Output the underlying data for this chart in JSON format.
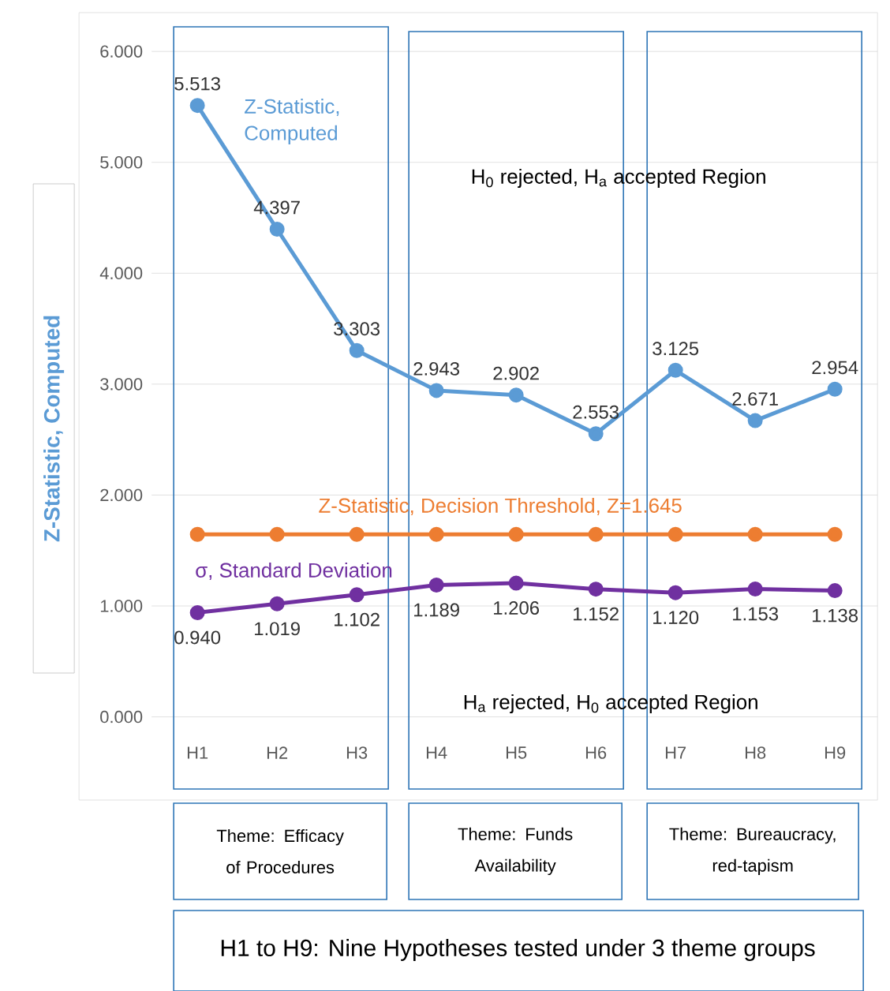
{
  "chart_data": {
    "type": "line",
    "ylabel": "Z-Statistic, Computed",
    "categories": [
      "H1",
      "H2",
      "H3",
      "H4",
      "H5",
      "H6",
      "H7",
      "H8",
      "H9"
    ],
    "ylim": [
      -0.75,
      6.35
    ],
    "yticks": [
      {
        "value": 0,
        "label": "0.000"
      },
      {
        "value": 1,
        "label": "1.000"
      },
      {
        "value": 2,
        "label": "2.000"
      },
      {
        "value": 3,
        "label": "3.000"
      },
      {
        "value": 4,
        "label": "4.000"
      },
      {
        "value": 5,
        "label": "5.000"
      },
      {
        "value": 6,
        "label": "6.000"
      }
    ],
    "grid": "y",
    "marker": "circle",
    "line_style": "solid",
    "series": [
      {
        "name": "Z-Statistic, Computed",
        "color": "#5b9bd5",
        "values": [
          5.513,
          4.397,
          3.303,
          2.943,
          2.902,
          2.553,
          3.125,
          2.671,
          2.954
        ],
        "value_labels": [
          "5.513",
          "4.397",
          "3.303",
          "2.943",
          "2.902",
          "2.553",
          "3.125",
          "2.671",
          "2.954"
        ]
      },
      {
        "name": "Z-Statistic, Decision Threshold, Z=1.645",
        "color": "#ed7d31",
        "values": [
          1.645,
          1.645,
          1.645,
          1.645,
          1.645,
          1.645,
          1.645,
          1.645,
          1.645
        ]
      },
      {
        "name": "σ, Standard Deviation",
        "color": "#7030a0",
        "values": [
          0.94,
          1.019,
          1.102,
          1.189,
          1.206,
          1.152,
          1.12,
          1.153,
          1.138
        ],
        "value_labels": [
          "0.940",
          "1.019",
          "1.102",
          "1.189",
          "1.206",
          "1.152",
          "1.120",
          "1.153",
          "1.138"
        ]
      }
    ],
    "annotations": [
      "H$_{0}$ rejected, H$_{a}$ accepted Region",
      "H$_{a}$ rejected, H$_{0}$ accepted Region",
      "Theme: Efficacy of Procedures",
      "Theme: Funds Availability",
      "Theme: Bureaucracy, red-tapism",
      "H1 to H9: Nine Hypotheses tested under 3 theme groups"
    ]
  }
}
